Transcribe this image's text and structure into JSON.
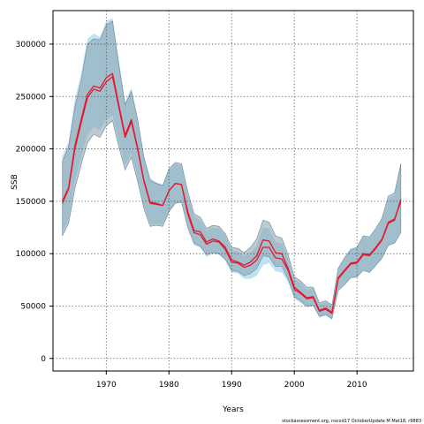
{
  "chart_data": {
    "type": "area",
    "xlabel": "Years",
    "ylabel": "SSB",
    "credit": "stockassessment.org, nscod17 OctoberUpdate M Mat18, r9883",
    "xlim": [
      1961.5,
      2019
    ],
    "ylim": [
      -12000,
      332000
    ],
    "xticks": [
      1970,
      1980,
      1990,
      2000,
      2010
    ],
    "yticks": [
      0,
      50000,
      100000,
      150000,
      200000,
      250000,
      300000
    ],
    "grid": true,
    "colors": {
      "line": "#e3172d",
      "band_light": "#a6d8ef",
      "band_dark": "#8fa6b4",
      "overlap": "#9dbfd0",
      "grid": "#444444"
    },
    "series": [
      {
        "role": "estimate-a",
        "x": [
          1963,
          1964,
          1965,
          1966,
          1967,
          1968,
          1969,
          1970,
          1971,
          1972,
          1973,
          1974,
          1975,
          1976,
          1977,
          1978,
          1979,
          1980,
          1981,
          1982,
          1983,
          1984,
          1985,
          1986,
          1987,
          1988,
          1989,
          1990,
          1991,
          1992,
          1993,
          1994,
          1995,
          1996,
          1997,
          1998,
          1999,
          2000,
          2001,
          2002,
          2003,
          2004,
          2005,
          2006,
          2007,
          2008,
          2009,
          2010,
          2011,
          2012,
          2013,
          2014,
          2015,
          2016,
          2017
        ],
        "y": [
          150000,
          163000,
          203000,
          228000,
          252000,
          260000,
          258000,
          268000,
          272000,
          242000,
          213000,
          228000,
          201000,
          170000,
          149000,
          148000,
          146000,
          160000,
          167000,
          166000,
          138000,
          120000,
          118000,
          109000,
          112000,
          111000,
          104000,
          92000,
          91000,
          87000,
          89000,
          94000,
          106000,
          106000,
          96000,
          95000,
          84000,
          66000,
          62000,
          57000,
          58000,
          45000,
          47000,
          43000,
          76000,
          83000,
          90000,
          91000,
          99000,
          98000,
          105000,
          113000,
          129000,
          132000,
          152000
        ]
      },
      {
        "role": "estimate-b",
        "x": [
          1963,
          1964,
          1965,
          1966,
          1967,
          1968,
          1969,
          1970,
          1971,
          1972,
          1973,
          1974,
          1975,
          1976,
          1977,
          1978,
          1979,
          1980,
          1981,
          1982,
          1983,
          1984,
          1985,
          1986,
          1987,
          1988,
          1989,
          1990,
          1991,
          1992,
          1993,
          1994,
          1995,
          1996,
          1997,
          1998,
          1999,
          2000,
          2001,
          2002,
          2003,
          2004,
          2005,
          2006,
          2007,
          2008,
          2009,
          2010,
          2011,
          2012,
          2013,
          2014,
          2015,
          2016,
          2017
        ],
        "y": [
          148000,
          162000,
          200000,
          225000,
          249000,
          257000,
          255000,
          264000,
          269000,
          240000,
          211000,
          226000,
          200000,
          169000,
          148000,
          147000,
          146000,
          160000,
          167000,
          166000,
          140000,
          122000,
          121000,
          111000,
          114000,
          112000,
          106000,
          94000,
          92000,
          89000,
          92000,
          98000,
          113000,
          112000,
          101000,
          100000,
          86000,
          68000,
          63000,
          58000,
          59000,
          46000,
          48000,
          44000,
          77000,
          84000,
          91000,
          92000,
          100000,
          99000,
          106000,
          114000,
          130000,
          133000,
          150000
        ]
      }
    ],
    "bands": [
      {
        "role": "light",
        "x": [
          1963,
          1964,
          1965,
          1966,
          1967,
          1968,
          1969,
          1970,
          1971,
          1972,
          1973,
          1974,
          1975,
          1976,
          1977,
          1978,
          1979,
          1980,
          1981,
          1982,
          1983,
          1984,
          1985,
          1986,
          1987,
          1988,
          1989,
          1990,
          1991,
          1992,
          1993,
          1994,
          1995,
          1996,
          1997,
          1998,
          1999,
          2000,
          2001,
          2002,
          2003,
          2004,
          2005,
          2006,
          2007,
          2008,
          2009,
          2010,
          2011,
          2012,
          2013,
          2014,
          2015,
          2016,
          2017
        ],
        "lower": [
          120000,
          133000,
          168000,
          192000,
          213000,
          221000,
          218000,
          228000,
          232000,
          207000,
          184000,
          196000,
          172000,
          146000,
          128000,
          128000,
          128000,
          141000,
          148000,
          149000,
          124000,
          108000,
          106000,
          97000,
          100000,
          99000,
          93000,
          82000,
          81000,
          76000,
          76000,
          79000,
          89000,
          91000,
          83000,
          82000,
          73000,
          57000,
          53000,
          49000,
          50000,
          39000,
          41000,
          37000,
          66000,
          71000,
          77000,
          77000,
          84000,
          82000,
          88000,
          95000,
          108000,
          110000,
          122000
        ],
        "upper": [
          193000,
          207000,
          248000,
          272000,
          305000,
          310000,
          307000,
          322000,
          325000,
          285000,
          245000,
          258000,
          230000,
          194000,
          172000,
          168000,
          166000,
          180000,
          186000,
          184000,
          157000,
          136000,
          132000,
          122000,
          125000,
          124000,
          117000,
          103000,
          102000,
          98000,
          101000,
          108000,
          125000,
          124000,
          111000,
          110000,
          96000,
          76000,
          72000,
          66000,
          67000,
          52000,
          54000,
          50000,
          87000,
          95000,
          104000,
          106000,
          116000,
          115000,
          123000,
          133000,
          152000,
          156000,
          187000
        ]
      },
      {
        "role": "dark",
        "x": [
          1963,
          1964,
          1965,
          1966,
          1967,
          1968,
          1969,
          1970,
          1971,
          1972,
          1973,
          1974,
          1975,
          1976,
          1977,
          1978,
          1979,
          1980,
          1981,
          1982,
          1983,
          1984,
          1985,
          1986,
          1987,
          1988,
          1989,
          1990,
          1991,
          1992,
          1993,
          1994,
          1995,
          1996,
          1997,
          1998,
          1999,
          2000,
          2001,
          2002,
          2003,
          2004,
          2005,
          2006,
          2007,
          2008,
          2009,
          2010,
          2011,
          2012,
          2013,
          2014,
          2015,
          2016,
          2017
        ],
        "lower": [
          117000,
          129000,
          162000,
          185000,
          206000,
          214000,
          211000,
          222000,
          227000,
          202000,
          180000,
          192000,
          169000,
          143000,
          126000,
          127000,
          126000,
          140000,
          148000,
          149000,
          125000,
          110000,
          107000,
          99000,
          101000,
          100000,
          95000,
          84000,
          83000,
          79000,
          81000,
          86000,
          98000,
          97000,
          88000,
          88000,
          76000,
          59000,
          55000,
          50000,
          51000,
          40000,
          42000,
          38000,
          65000,
          70000,
          77000,
          78000,
          84000,
          82000,
          89000,
          96000,
          108000,
          110000,
          120000
        ],
        "upper": [
          188000,
          202000,
          240000,
          265000,
          300000,
          305000,
          304000,
          318000,
          322000,
          280000,
          242000,
          255000,
          228000,
          192000,
          170000,
          167000,
          165000,
          181000,
          187000,
          186000,
          159000,
          138000,
          135000,
          124000,
          127000,
          126000,
          119000,
          106000,
          105000,
          101000,
          106000,
          114000,
          132000,
          130000,
          117000,
          115000,
          99000,
          78000,
          74000,
          68000,
          68000,
          53000,
          55000,
          51000,
          86000,
          96000,
          104000,
          106000,
          117000,
          116000,
          124000,
          134000,
          155000,
          158000,
          186000
        ]
      }
    ]
  }
}
